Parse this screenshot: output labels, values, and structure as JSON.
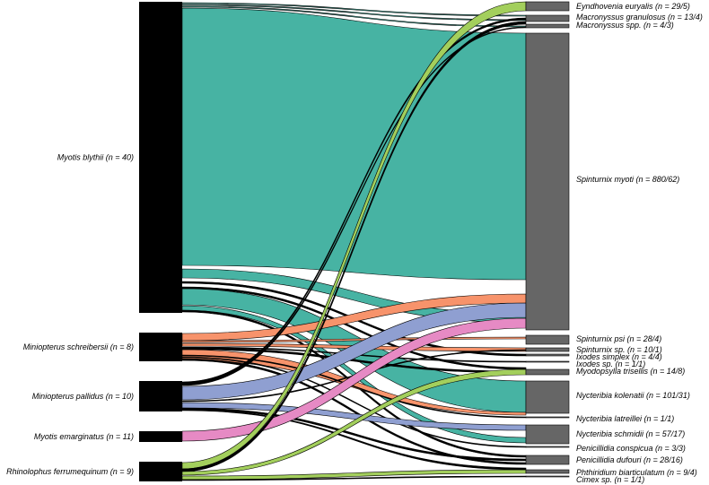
{
  "colors": {
    "host_bar": "#000000",
    "parasite_bar": "#666666",
    "teal": "#47b3a3",
    "orange": "#f7936b",
    "blue": "#8f9fd1",
    "pink": "#e68ac4",
    "green": "#a3cf5c",
    "black": "#000000"
  },
  "hosts": [
    {
      "key": "mbly",
      "label": "Myotis blythii (n = 40)"
    },
    {
      "key": "msch",
      "label": "Miniopterus schreibersii (n = 8)"
    },
    {
      "key": "mpal",
      "label": "Miniopterus pallidus (n = 10)"
    },
    {
      "key": "mema",
      "label": "Myotis emarginatus (n = 11)"
    },
    {
      "key": "rfer",
      "label": "Rhinolophus ferrumequinum (n = 9)"
    }
  ],
  "parasites": [
    {
      "key": "eyn",
      "label": "Eyndhovenia euryalis (n = 29/5)"
    },
    {
      "key": "mgr",
      "label": "Macronyssus granulosus (n = 13/4)"
    },
    {
      "key": "msp",
      "label": "Macronyssus spp. (n = 4/3)"
    },
    {
      "key": "smy",
      "label": "Spinturnix myoti (n = 880/62)"
    },
    {
      "key": "sps",
      "label": "Spinturnix psi (n = 28/4)"
    },
    {
      "key": "ssp",
      "label": "Spinturnix sp. (n = 10/1)"
    },
    {
      "key": "isi",
      "label": "Ixodes simplex (n = 4/4)"
    },
    {
      "key": "isp",
      "label": "Ixodes sp. (n = 1/1)"
    },
    {
      "key": "mtr",
      "label": "Myodopsylla trisellis (n = 14/8)"
    },
    {
      "key": "nko",
      "label": "Nycteribia kolenatii (n = 101/31)"
    },
    {
      "key": "nla",
      "label": "Nycteribia latreillei (n = 1/1)"
    },
    {
      "key": "nsc",
      "label": "Nycteribia schmidii (n = 57/17)"
    },
    {
      "key": "pco",
      "label": "Penicillidia conspicua (n = 3/3)"
    },
    {
      "key": "pdu",
      "label": "Penicillidia dufouri (n = 28/16)"
    },
    {
      "key": "pbi",
      "label": "Phthiridium biarticulatum (n = 9/4)"
    },
    {
      "key": "cim",
      "label": "Cimex sp. (n = 1/1)"
    }
  ],
  "links": [
    {
      "from": "mbly",
      "to": "eyn",
      "color": "teal"
    },
    {
      "from": "mbly",
      "to": "mgr",
      "color": "teal"
    },
    {
      "from": "mbly",
      "to": "msp",
      "color": "teal"
    },
    {
      "from": "mbly",
      "to": "smy",
      "color": "teal"
    },
    {
      "from": "mbly",
      "to": "sps",
      "color": "teal"
    },
    {
      "from": "mbly",
      "to": "isi",
      "color": "black"
    },
    {
      "from": "mbly",
      "to": "mtr",
      "color": "black"
    },
    {
      "from": "mbly",
      "to": "nko",
      "color": "teal"
    },
    {
      "from": "mbly",
      "to": "nsc",
      "color": "teal"
    },
    {
      "from": "mbly",
      "to": "pdu",
      "color": "black"
    },
    {
      "from": "msch",
      "to": "smy",
      "color": "orange"
    },
    {
      "from": "msch",
      "to": "sps",
      "color": "orange"
    },
    {
      "from": "msch",
      "to": "ssp",
      "color": "orange"
    },
    {
      "from": "msch",
      "to": "isp",
      "color": "black"
    },
    {
      "from": "msch",
      "to": "mtr",
      "color": "black"
    },
    {
      "from": "msch",
      "to": "nko",
      "color": "orange"
    },
    {
      "from": "msch",
      "to": "nla",
      "color": "black"
    },
    {
      "from": "msch",
      "to": "pco",
      "color": "black"
    },
    {
      "from": "msch",
      "to": "pdu",
      "color": "black"
    },
    {
      "from": "mpal",
      "to": "mgr",
      "color": "black"
    },
    {
      "from": "mpal",
      "to": "msp",
      "color": "black"
    },
    {
      "from": "mpal",
      "to": "smy",
      "color": "blue"
    },
    {
      "from": "mpal",
      "to": "ssp",
      "color": "black"
    },
    {
      "from": "mpal",
      "to": "nsc",
      "color": "blue"
    },
    {
      "from": "mpal",
      "to": "pdu",
      "color": "black"
    },
    {
      "from": "mpal",
      "to": "pbi",
      "color": "black"
    },
    {
      "from": "mema",
      "to": "smy",
      "color": "pink"
    },
    {
      "from": "rfer",
      "to": "eyn",
      "color": "green"
    },
    {
      "from": "rfer",
      "to": "mgr",
      "color": "black"
    },
    {
      "from": "rfer",
      "to": "mtr",
      "color": "green"
    },
    {
      "from": "rfer",
      "to": "pbi",
      "color": "green"
    },
    {
      "from": "rfer",
      "to": "cim",
      "color": "black"
    }
  ]
}
